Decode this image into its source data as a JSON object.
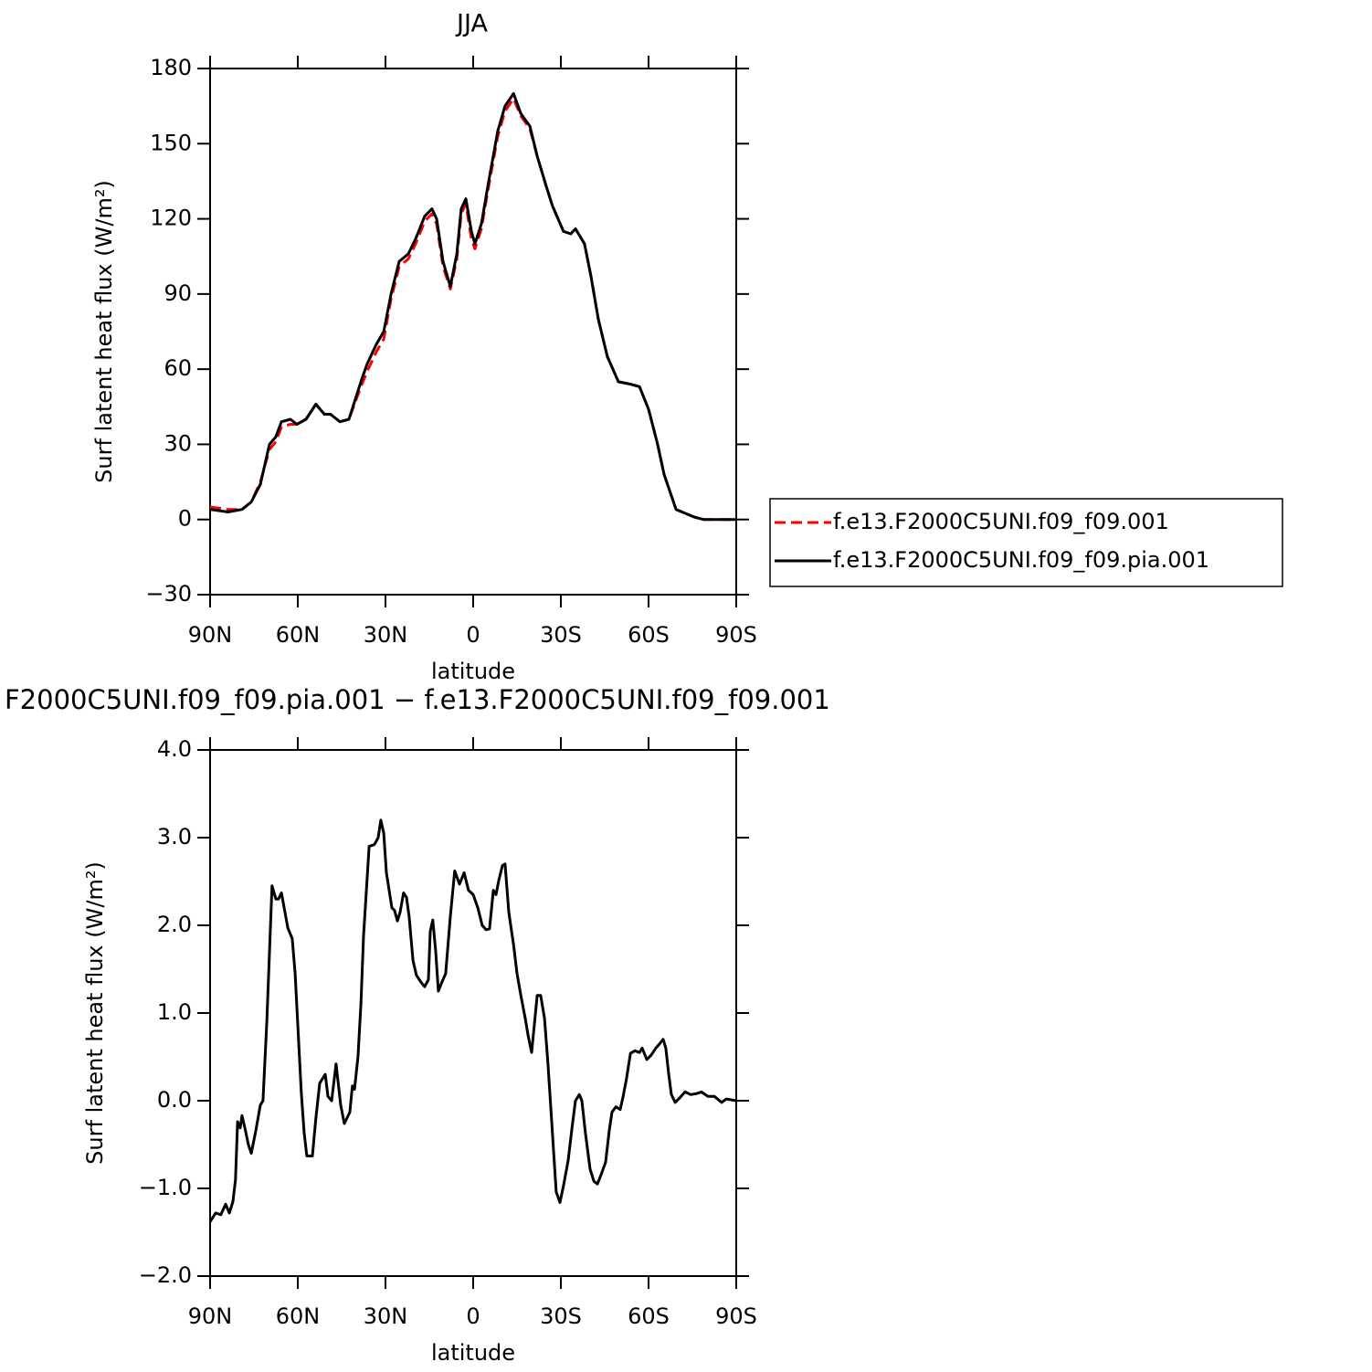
{
  "chart_data": [
    {
      "type": "line",
      "title": "JJA",
      "xlabel": "latitude",
      "ylabel": "Surf latent heat flux (W/m²)",
      "xlim": [
        90,
        -90
      ],
      "xticks": [
        {
          "value": 90,
          "label": "90N"
        },
        {
          "value": 60,
          "label": "60N"
        },
        {
          "value": 30,
          "label": "30N"
        },
        0,
        {
          "value": -30,
          "label": "30S"
        },
        {
          "value": -60,
          "label": "60S"
        },
        {
          "value": -90,
          "label": "90S"
        }
      ],
      "ylim": [
        -30,
        180
      ],
      "yticks": [
        {
          "value": -30,
          "label": "−30"
        },
        0,
        30,
        60,
        90,
        120,
        150,
        180
      ],
      "grid": false,
      "legend": "right",
      "x": [
        90,
        83.8,
        79.1,
        75.9,
        72.8,
        69.7,
        67.5,
        65.6,
        62.5,
        60.3,
        57.2,
        53.8,
        50.9,
        48.8,
        45.6,
        42.5,
        38.4,
        36.3,
        33.1,
        30.6,
        28.1,
        25.3,
        22.2,
        19.7,
        16.6,
        14.1,
        12.5,
        10.3,
        7.8,
        5.6,
        4.1,
        2.5,
        0.6,
        -0.6,
        -2.8,
        -5.3,
        -8.4,
        -10.9,
        -13.8,
        -16.3,
        -19.4,
        -21.9,
        -25,
        -27.2,
        -30.9,
        -33.4,
        -35,
        -38.1,
        -40.3,
        -42.8,
        -45.9,
        -49.7,
        -53.8,
        -56.9,
        -60,
        -63.1,
        -65.3,
        -69.4,
        -75.6,
        -78.8,
        -85,
        -90
      ],
      "series": [
        {
          "name": "f.e13.F2000C5UNI.f09_f09.001",
          "color": "#ff0000",
          "dashed": true,
          "values": [
            5,
            4,
            4,
            7,
            15,
            28,
            31,
            37,
            38,
            38,
            40,
            46,
            42,
            42,
            39,
            40,
            53,
            59,
            67,
            72,
            88,
            101,
            104,
            110,
            119,
            122,
            118,
            101,
            92,
            104,
            122,
            126,
            112,
            108,
            116,
            133,
            153,
            163,
            168,
            161,
            156,
            145,
            133,
            125,
            115,
            114,
            116,
            110,
            97,
            80,
            65,
            55,
            54,
            53,
            44,
            30,
            18,
            4,
            1,
            0,
            0,
            0
          ]
        },
        {
          "name": "f.e13.F2000C5UNI.f09_f09.pia.001",
          "color": "#000000",
          "dashed": false,
          "values": [
            4,
            3,
            4,
            7,
            14,
            30,
            33,
            39,
            40,
            38,
            40,
            46,
            42,
            42,
            39,
            40,
            55,
            62,
            70,
            75,
            90,
            103,
            106,
            112,
            121,
            124,
            120,
            103,
            93,
            106,
            124,
            128,
            115,
            110,
            118,
            135,
            155,
            165,
            170,
            162,
            157,
            145,
            133,
            125,
            115,
            114,
            116,
            110,
            97,
            80,
            65,
            55,
            54,
            53,
            44,
            30,
            18,
            4,
            1,
            0,
            0,
            0
          ]
        }
      ]
    },
    {
      "type": "line",
      "title": "F2000C5UNI.f09_f09.pia.001 − f.e13.F2000C5UNI.f09_f09.001",
      "xlabel": "latitude",
      "ylabel": "Surf latent heat flux (W/m²)",
      "xlim": [
        90,
        -90
      ],
      "xticks": [
        {
          "value": 90,
          "label": "90N"
        },
        {
          "value": 60,
          "label": "60N"
        },
        {
          "value": 30,
          "label": "30N"
        },
        0,
        {
          "value": -30,
          "label": "30S"
        },
        {
          "value": -60,
          "label": "60S"
        },
        {
          "value": -90,
          "label": "90S"
        }
      ],
      "ylim": [
        -2,
        4
      ],
      "yticks": [
        {
          "value": -2,
          "label": "−2.0"
        },
        {
          "value": -1,
          "label": "−1.0"
        },
        {
          "value": 0,
          "label": "0.0"
        },
        {
          "value": 1,
          "label": "1.0"
        },
        {
          "value": 2,
          "label": "2.0"
        },
        {
          "value": 3,
          "label": "3.0"
        },
        {
          "value": 4,
          "label": "4.0"
        }
      ],
      "grid": false,
      "x": [
        90,
        88.1,
        86.3,
        84.7,
        83.4,
        82.2,
        81.3,
        80.6,
        79.7,
        79.1,
        78.1,
        76.9,
        75.9,
        74.4,
        72.8,
        71.9,
        70.6,
        68.8,
        67.5,
        66.6,
        65.6,
        63.4,
        61.9,
        60.9,
        58.8,
        57.8,
        56.9,
        55,
        53.8,
        52.5,
        50.6,
        49.7,
        48.4,
        46.9,
        45.3,
        44.1,
        42.2,
        41.3,
        40.6,
        39.4,
        38.4,
        37.5,
        35.6,
        33.8,
        32.5,
        31.6,
        30.6,
        29.7,
        27.8,
        26.9,
        25.9,
        25,
        23.8,
        22.8,
        21.9,
        20.6,
        19.4,
        17.8,
        16.6,
        15.3,
        14.7,
        13.8,
        12.8,
        11.9,
        10.6,
        9.4,
        7.8,
        6.3,
        4.7,
        3.1,
        1.6,
        0,
        -1.6,
        -3.1,
        -4.4,
        -5.6,
        -6.9,
        -7.8,
        -8.8,
        -10,
        -10.9,
        -12.2,
        -13.8,
        -15,
        -16.3,
        -17.8,
        -18.8,
        -20,
        -21.9,
        -23.1,
        -24.4,
        -25.6,
        -26.9,
        -28.4,
        -29.7,
        -30.9,
        -32.5,
        -33.8,
        -35,
        -36.3,
        -37.2,
        -38.4,
        -40,
        -41.3,
        -42.5,
        -43.8,
        -45.3,
        -46.6,
        -47.5,
        -48.8,
        -50.3,
        -51.3,
        -52.5,
        -53.8,
        -55.3,
        -56.9,
        -57.8,
        -59.4,
        -60.9,
        -62.5,
        -63.8,
        -65,
        -65.9,
        -66.9,
        -67.8,
        -69.1,
        -70.3,
        -72.5,
        -74.4,
        -76.3,
        -78.1,
        -80.3,
        -82.5,
        -85,
        -86.6,
        -90
      ],
      "series": [
        {
          "color": "#000000",
          "dashed": false,
          "values": [
            -1.38,
            -1.28,
            -1.3,
            -1.18,
            -1.28,
            -1.15,
            -0.9,
            -0.24,
            -0.31,
            -0.17,
            -0.31,
            -0.5,
            -0.6,
            -0.35,
            -0.05,
            0,
            0.9,
            2.45,
            2.3,
            2.3,
            2.37,
            1.97,
            1.85,
            1.45,
            0.1,
            -0.37,
            -0.63,
            -0.63,
            -0.2,
            0.2,
            0.3,
            0.05,
            0,
            0.42,
            -0.05,
            -0.26,
            -0.13,
            0.17,
            0.13,
            0.5,
            1.1,
            1.88,
            2.9,
            2.92,
            3.0,
            3.2,
            3.05,
            2.6,
            2.2,
            2.17,
            2.05,
            2.15,
            2.37,
            2.32,
            2.1,
            1.6,
            1.43,
            1.35,
            1.3,
            1.38,
            1.93,
            2.06,
            1.7,
            1.25,
            1.36,
            1.45,
            2.1,
            2.62,
            2.47,
            2.6,
            2.4,
            2.35,
            2.2,
            2.0,
            1.95,
            1.96,
            2.4,
            2.35,
            2.52,
            2.68,
            2.7,
            2.15,
            1.78,
            1.45,
            1.2,
            0.94,
            0.74,
            0.55,
            1.2,
            1.2,
            0.94,
            0.42,
            -0.26,
            -1.04,
            -1.16,
            -0.97,
            -0.68,
            -0.31,
            0,
            0.07,
            0,
            -0.37,
            -0.78,
            -0.92,
            -0.95,
            -0.84,
            -0.7,
            -0.33,
            -0.13,
            -0.07,
            -0.1,
            0.05,
            0.26,
            0.54,
            0.57,
            0.55,
            0.6,
            0.47,
            0.52,
            0.6,
            0.65,
            0.7,
            0.6,
            0.3,
            0.07,
            -0.02,
            0.02,
            0.1,
            0.07,
            0.08,
            0.1,
            0.05,
            0.05,
            -0.02,
            0.02,
            0
          ]
        }
      ]
    }
  ]
}
